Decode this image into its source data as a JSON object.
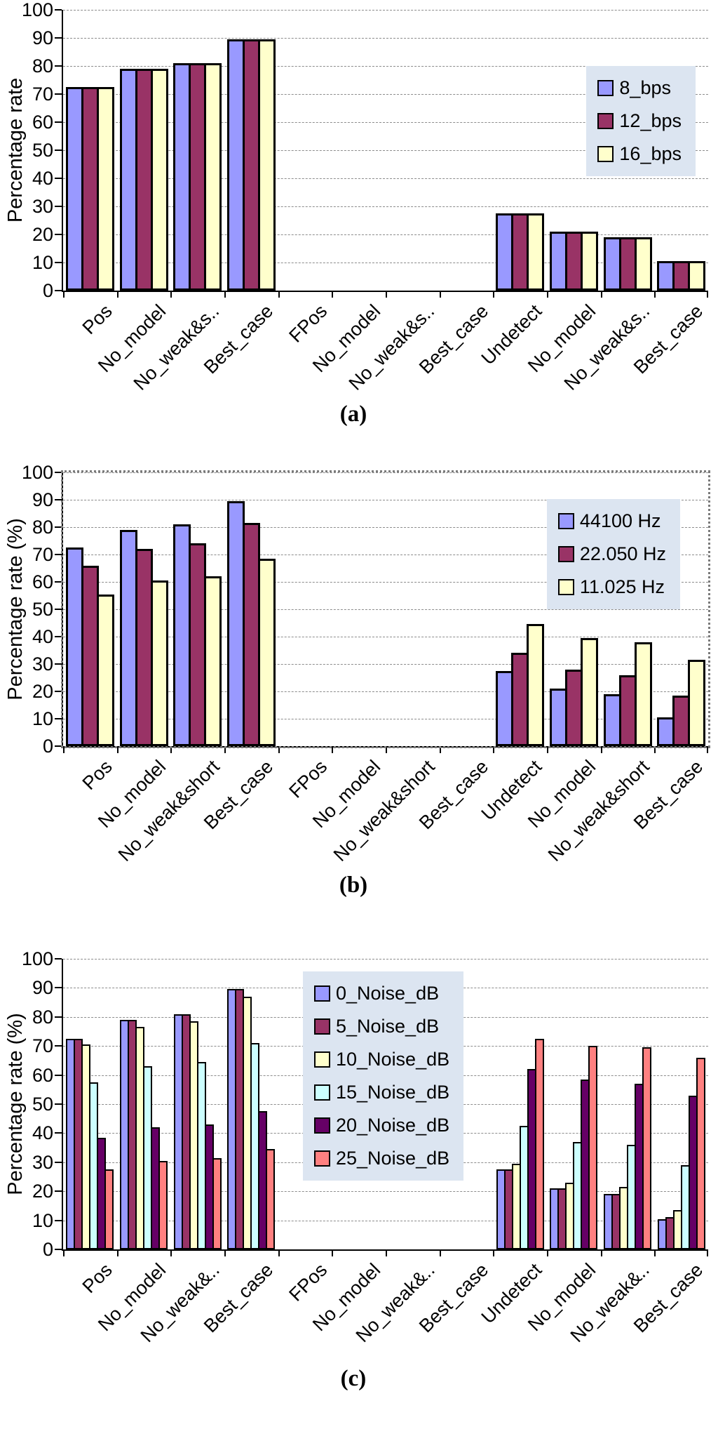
{
  "page": {
    "background": "#ffffff"
  },
  "colors": {
    "axis": "#000000",
    "gridline": "#8c8c8c",
    "bar_border": "#000000",
    "legend_background": "#DCE5F1",
    "series_palette": [
      "#9999FF",
      "#993366",
      "#FFFFCC",
      "#CCFFFF",
      "#660066",
      "#FF8080"
    ]
  },
  "chart_data": [
    {
      "id": "a",
      "type": "bar",
      "caption": "(a)",
      "title": "",
      "xlabel": "",
      "ylabel": "Percentage rate",
      "ylim": [
        0,
        100
      ],
      "yticks": [
        0,
        10,
        20,
        30,
        40,
        50,
        60,
        70,
        80,
        90,
        100
      ],
      "grid": "horizontal-dashed",
      "legend_position": "top-right-inside",
      "categories": [
        "Pos",
        "No_model",
        "No_weak&s..",
        "Best_case",
        "FPos",
        "No_model",
        "No_weak&s..",
        "Best_case",
        "Undetect",
        "No_model",
        "No_weak&s..",
        "Best_case"
      ],
      "series": [
        {
          "name": "8_bps",
          "color": "#9999FF",
          "values": [
            72.5,
            79,
            81,
            89.5,
            0,
            0,
            0,
            0,
            27.5,
            21,
            19,
            10.5
          ]
        },
        {
          "name": "12_bps",
          "color": "#993366",
          "values": [
            72.5,
            79,
            81,
            89.5,
            0,
            0,
            0,
            0,
            27.5,
            21,
            19,
            10.5
          ]
        },
        {
          "name": "16_bps",
          "color": "#FFFFCC",
          "values": [
            72.5,
            79,
            81,
            89.5,
            0,
            0,
            0,
            0,
            27.5,
            21,
            19,
            10.5
          ]
        }
      ]
    },
    {
      "id": "b",
      "type": "bar",
      "caption": "(b)",
      "title": "",
      "xlabel": "",
      "ylabel": "Percentage rate (%)",
      "ylim": [
        0,
        100
      ],
      "yticks": [
        0,
        10,
        20,
        30,
        40,
        50,
        60,
        70,
        80,
        90,
        100
      ],
      "grid": "horizontal-dashed",
      "plot_border": "dotted",
      "legend_position": "top-right-inside",
      "categories": [
        "Pos",
        "No_model",
        "No_weak&short",
        "Best_case",
        "FPos",
        "No_model",
        "No_weak&short",
        "Best_case",
        "Undetect",
        "No_model",
        "No_weak&short",
        "Best_case"
      ],
      "series": [
        {
          "name": "44100 Hz",
          "color": "#9999FF",
          "values": [
            72.5,
            79,
            81,
            89.5,
            0,
            0,
            0,
            0,
            27.5,
            21,
            19,
            10.5
          ]
        },
        {
          "name": "22.050 Hz",
          "color": "#993366",
          "values": [
            66,
            72,
            74,
            81.5,
            0,
            0,
            0,
            0,
            34,
            28,
            26,
            18.5
          ]
        },
        {
          "name": "11.025 Hz",
          "color": "#FFFFCC",
          "values": [
            55.5,
            60.5,
            62,
            68.5,
            0,
            0,
            0,
            0,
            44.5,
            39.5,
            38,
            31.5
          ]
        }
      ]
    },
    {
      "id": "c",
      "type": "bar",
      "caption": "(c)",
      "title": "",
      "xlabel": "",
      "ylabel": "Percentage rate (%)",
      "ylim": [
        0,
        100
      ],
      "yticks": [
        0,
        10,
        20,
        30,
        40,
        50,
        60,
        70,
        80,
        90,
        100
      ],
      "grid": "horizontal-dashed",
      "legend_position": "top-center-inside",
      "categories": [
        "Pos",
        "No_model",
        "No_weak&..",
        "Best_case",
        "FPos",
        "No_model",
        "No_weak&..",
        "Best_case",
        "Undetect",
        "No_model",
        "No_weak&..",
        "Best_case"
      ],
      "series": [
        {
          "name": "0_Noise_dB",
          "color": "#9999FF",
          "values": [
            72.5,
            79,
            81,
            89.5,
            0,
            0,
            0,
            0,
            27.5,
            21,
            19,
            10.5
          ]
        },
        {
          "name": "5_Noise_dB",
          "color": "#993366",
          "values": [
            72.5,
            79,
            81,
            89.5,
            0,
            0,
            0,
            0,
            27.5,
            21,
            19,
            11
          ]
        },
        {
          "name": "10_Noise_dB",
          "color": "#FFFFCC",
          "values": [
            70.5,
            76.5,
            78.5,
            87,
            0,
            0,
            0,
            0,
            29.5,
            23,
            21.5,
            13.5
          ]
        },
        {
          "name": "15_Noise_dB",
          "color": "#CCFFFF",
          "values": [
            57.5,
            63,
            64.5,
            71,
            0,
            0,
            0,
            0,
            42.5,
            37,
            36,
            29
          ]
        },
        {
          "name": "20_Noise_dB",
          "color": "#660066",
          "values": [
            38.5,
            42,
            43,
            47.5,
            0,
            0,
            0,
            0,
            62,
            58.5,
            57,
            53
          ]
        },
        {
          "name": "25_Noise_dB",
          "color": "#FF8080",
          "values": [
            27.5,
            30.5,
            31.5,
            34.5,
            0,
            0,
            0,
            0,
            72.5,
            70,
            69.5,
            66
          ]
        }
      ]
    }
  ]
}
